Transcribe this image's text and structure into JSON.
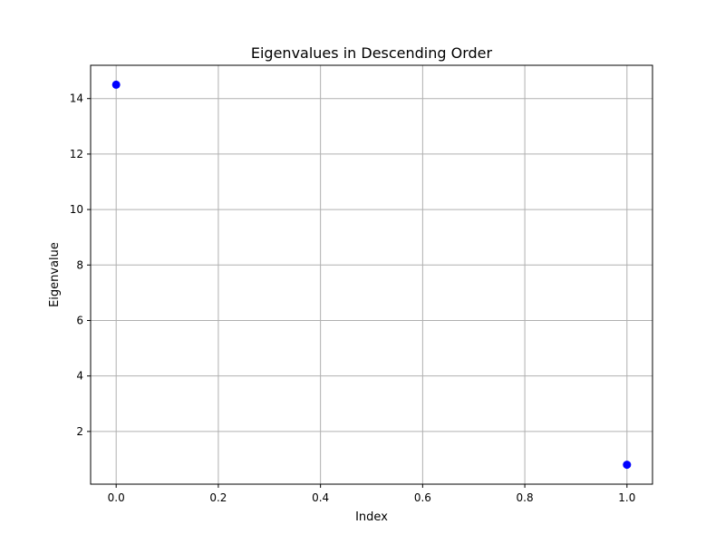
{
  "chart_data": {
    "type": "scatter",
    "title": "Eigenvalues in Descending Order",
    "xlabel": "Index",
    "ylabel": "Eigenvalue",
    "x": [
      0,
      1
    ],
    "y": [
      14.5,
      0.8
    ],
    "xlim": [
      -0.05,
      1.05
    ],
    "ylim": [
      0.1,
      15.2
    ],
    "xticks": [
      0.0,
      0.2,
      0.4,
      0.6,
      0.8,
      1.0
    ],
    "xtick_labels": [
      "0.0",
      "0.2",
      "0.4",
      "0.6",
      "0.8",
      "1.0"
    ],
    "yticks": [
      2,
      4,
      6,
      8,
      10,
      12,
      14
    ],
    "ytick_labels": [
      "2",
      "4",
      "6",
      "8",
      "10",
      "12",
      "14"
    ],
    "grid": true,
    "marker_color": "#0000ff"
  }
}
